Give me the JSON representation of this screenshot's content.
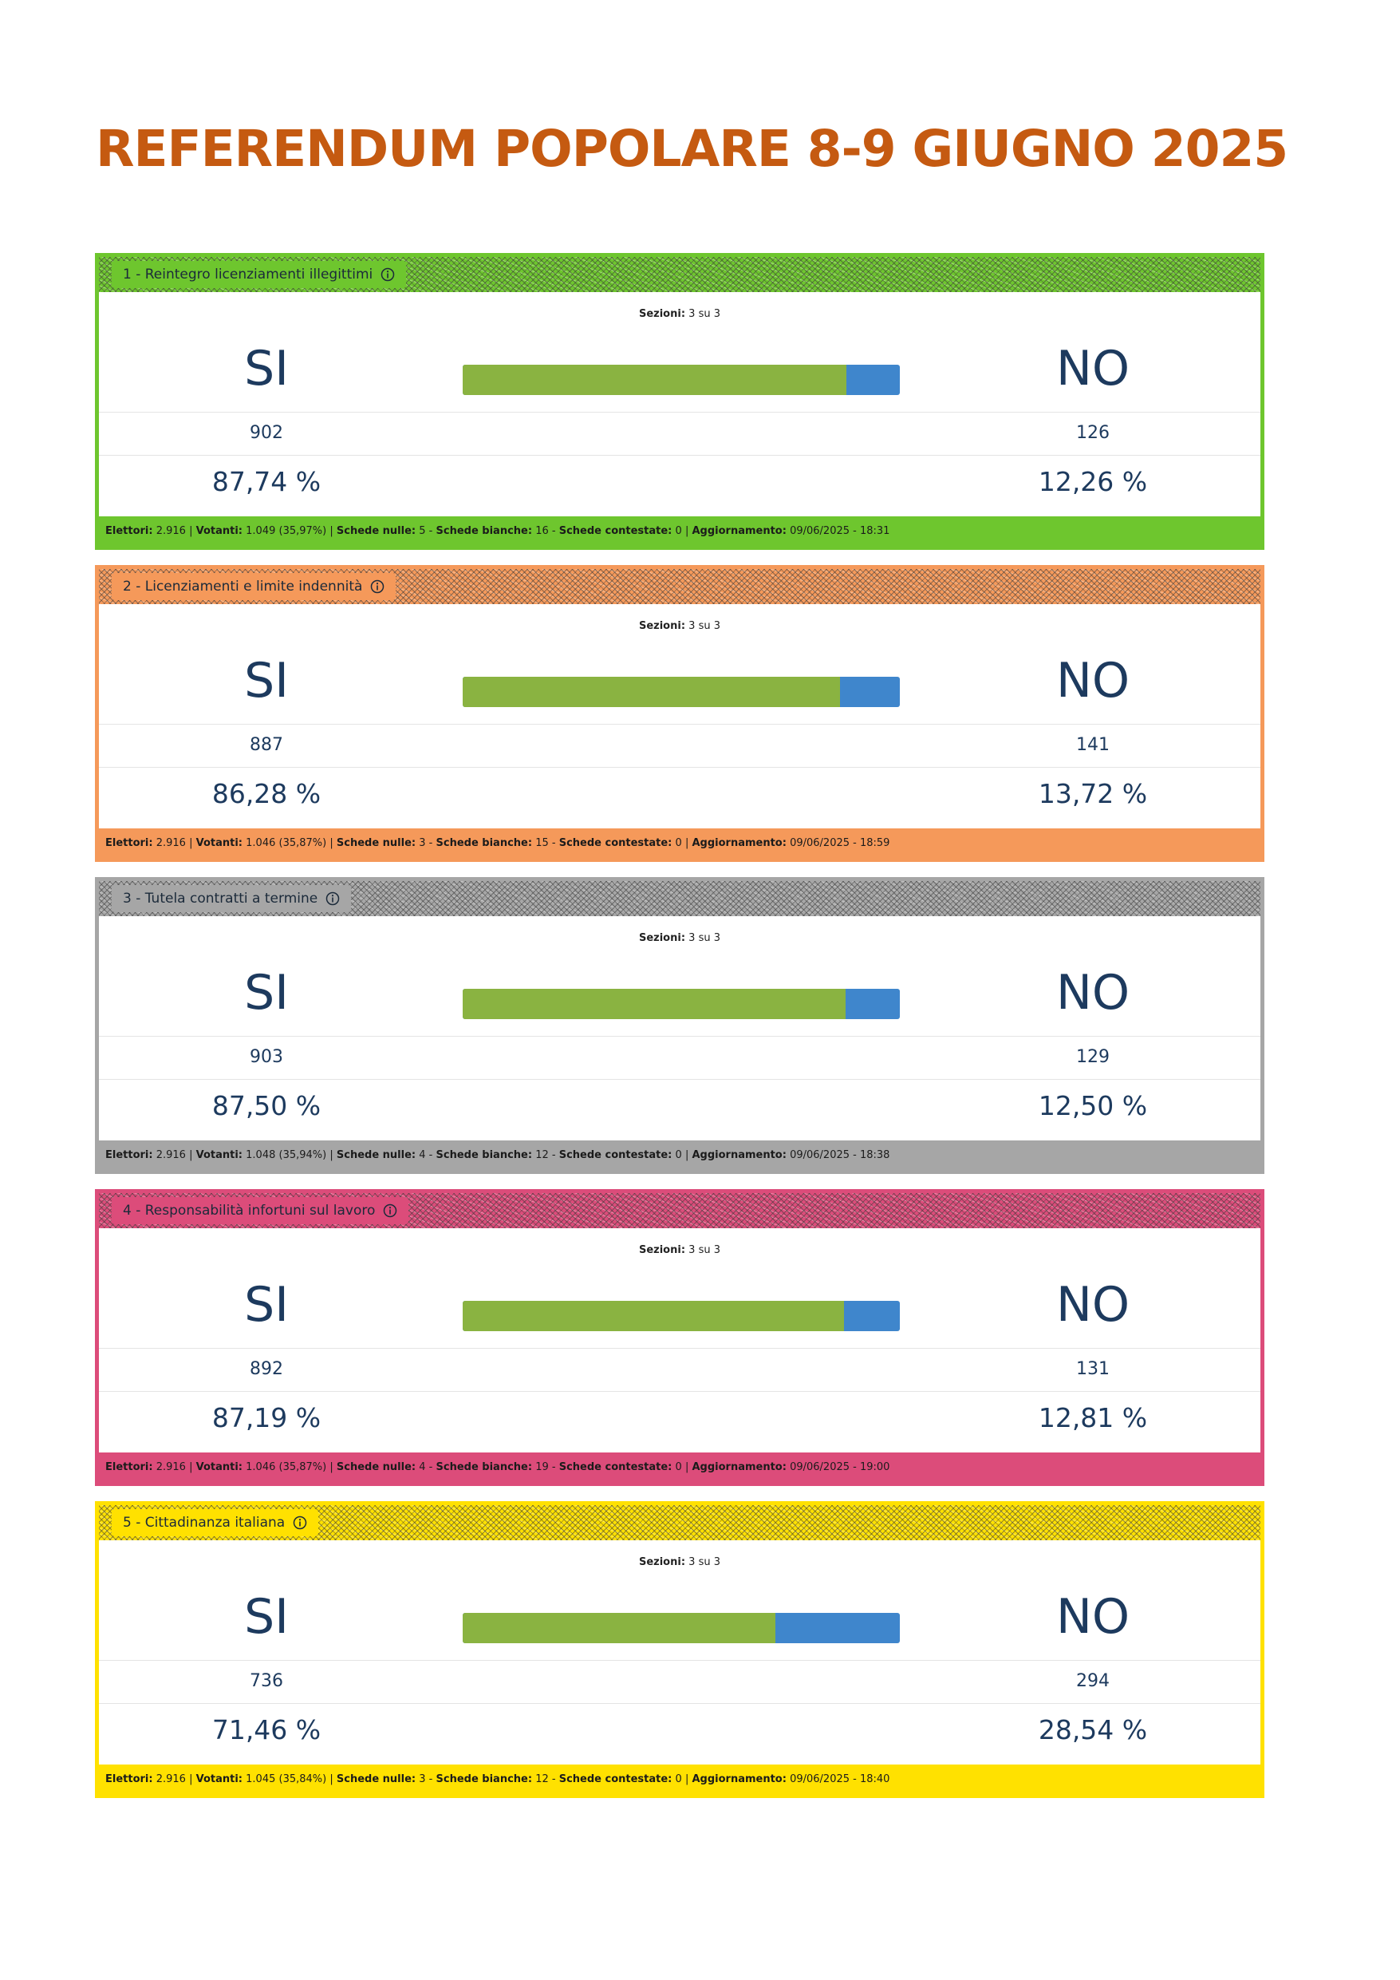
{
  "title": "REFERENDUM POPOLARE 8-9 GIUGNO 2025",
  "labels": {
    "sezioni": "Sezioni:",
    "si": "SI",
    "no": "NO",
    "elettori": "Elettori:",
    "votanti": "Votanti:",
    "schede_nulle": "Schede nulle:",
    "schede_bianche": "Schede bianche:",
    "schede_contestate": "Schede contestate:",
    "aggiornamento": "Aggiornamento:"
  },
  "referenda": [
    {
      "title": "1 - Reintegro licenziamenti illegittimi",
      "color": "#6ec62e",
      "sezioni": "3 su 3",
      "si_votes": "902",
      "no_votes": "126",
      "si_pct": "87,74 %",
      "no_pct": "12,26 %",
      "yes_share": 87.74,
      "elettori": "2.916",
      "votanti": "1.049 (35,97%)",
      "schede_nulle": "5",
      "schede_bianche": "16",
      "schede_contestate": "0",
      "aggiornamento": "09/06/2025 - 18:31"
    },
    {
      "title": "2 - Licenziamenti e limite indennità",
      "color": "#f5995a",
      "sezioni": "3 su 3",
      "si_votes": "887",
      "no_votes": "141",
      "si_pct": "86,28 %",
      "no_pct": "13,72 %",
      "yes_share": 86.28,
      "elettori": "2.916",
      "votanti": "1.046 (35,87%)",
      "schede_nulle": "3",
      "schede_bianche": "15",
      "schede_contestate": "0",
      "aggiornamento": "09/06/2025 - 18:59"
    },
    {
      "title": "3 - Tutela contratti a termine",
      "color": "#a6a6a6",
      "sezioni": "3 su 3",
      "si_votes": "903",
      "no_votes": "129",
      "si_pct": "87,50 %",
      "no_pct": "12,50 %",
      "yes_share": 87.5,
      "elettori": "2.916",
      "votanti": "1.048 (35,94%)",
      "schede_nulle": "4",
      "schede_bianche": "12",
      "schede_contestate": "0",
      "aggiornamento": "09/06/2025 - 18:38"
    },
    {
      "title": "4 - Responsabilità infortuni sul lavoro",
      "color": "#dc4c7a",
      "sezioni": "3 su 3",
      "si_votes": "892",
      "no_votes": "131",
      "si_pct": "87,19 %",
      "no_pct": "12,81 %",
      "yes_share": 87.19,
      "elettori": "2.916",
      "votanti": "1.046 (35,87%)",
      "schede_nulle": "4",
      "schede_bianche": "19",
      "schede_contestate": "0",
      "aggiornamento": "09/06/2025 - 19:00"
    },
    {
      "title": "5 - Cittadinanza italiana",
      "color": "#ffe100",
      "sezioni": "3 su 3",
      "si_votes": "736",
      "no_votes": "294",
      "si_pct": "71,46 %",
      "no_pct": "28,54 %",
      "yes_share": 71.46,
      "elettori": "2.916",
      "votanti": "1.045 (35,84%)",
      "schede_nulle": "3",
      "schede_bianche": "12",
      "schede_contestate": "0",
      "aggiornamento": "09/06/2025 - 18:40"
    }
  ]
}
